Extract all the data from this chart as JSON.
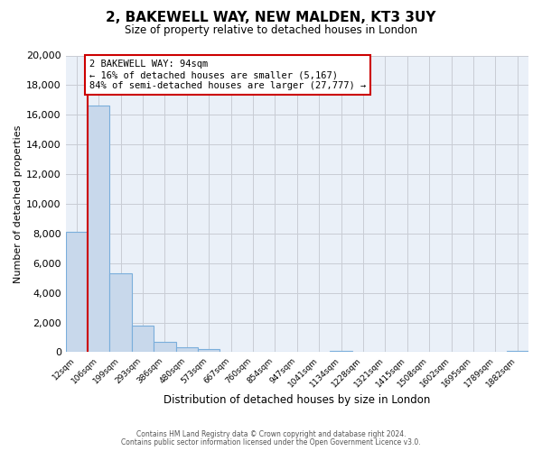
{
  "title": "2, BAKEWELL WAY, NEW MALDEN, KT3 3UY",
  "subtitle": "Size of property relative to detached houses in London",
  "xlabel": "Distribution of detached houses by size in London",
  "ylabel": "Number of detached properties",
  "bar_labels": [
    "12sqm",
    "106sqm",
    "199sqm",
    "293sqm",
    "386sqm",
    "480sqm",
    "573sqm",
    "667sqm",
    "760sqm",
    "854sqm",
    "947sqm",
    "1041sqm",
    "1134sqm",
    "1228sqm",
    "1321sqm",
    "1415sqm",
    "1508sqm",
    "1602sqm",
    "1695sqm",
    "1789sqm",
    "1882sqm"
  ],
  "bar_values": [
    8100,
    16600,
    5300,
    1800,
    700,
    300,
    200,
    0,
    0,
    0,
    0,
    0,
    100,
    0,
    0,
    0,
    0,
    0,
    0,
    0,
    100
  ],
  "bar_color": "#c8d8eb",
  "bar_edge_color": "#7aaedb",
  "ylim": [
    0,
    20000
  ],
  "yticks": [
    0,
    2000,
    4000,
    6000,
    8000,
    10000,
    12000,
    14000,
    16000,
    18000,
    20000
  ],
  "property_vline_x": 0.5,
  "annotation_title": "2 BAKEWELL WAY: 94sqm",
  "annotation_line1": "← 16% of detached houses are smaller (5,167)",
  "annotation_line2": "84% of semi-detached houses are larger (27,777) →",
  "property_vline_color": "#cc0000",
  "annotation_box_edge_color": "#cc0000",
  "axes_bg_color": "#eaf0f8",
  "bg_color": "#ffffff",
  "grid_color": "#c8ccd4",
  "footer1": "Contains HM Land Registry data © Crown copyright and database right 2024.",
  "footer2": "Contains public sector information licensed under the Open Government Licence v3.0."
}
